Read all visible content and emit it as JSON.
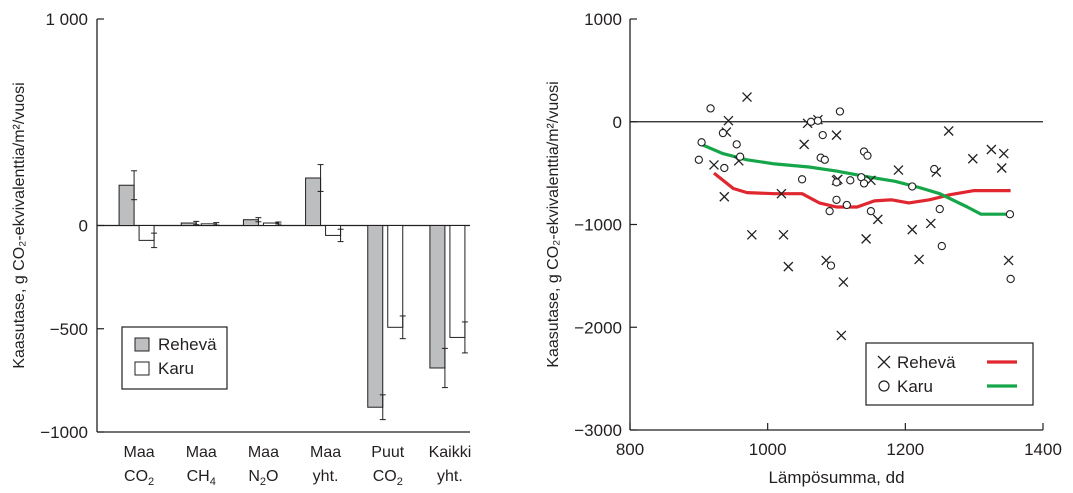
{
  "chart_data": [
    {
      "type": "bar",
      "ylabel": "Kaasutase, g CO₂-ekvivalenttia/m²/vuosi",
      "ylim": [
        -1000,
        1000
      ],
      "yticks": [
        {
          "value": 1000,
          "label": "1 000"
        },
        {
          "value": 0,
          "label": "0"
        },
        {
          "value": -500,
          "label": "−500"
        },
        {
          "value": -1000,
          "label": "−1000"
        }
      ],
      "categories": [
        {
          "line1": "Maa",
          "line2": "CO",
          "sub": "2"
        },
        {
          "line1": "Maa",
          "line2": "CH",
          "sub": "4"
        },
        {
          "line1": "Maa",
          "line2": "N",
          "sub": "2",
          "line2_suffix": "O"
        },
        {
          "line1": "Maa",
          "line2": "yht.",
          "sub": ""
        },
        {
          "line1": "Puut",
          "line2": "CO",
          "sub": "2"
        },
        {
          "line1": "Kaikki",
          "line2": "yht.",
          "sub": ""
        }
      ],
      "series": [
        {
          "name": "Rehevä",
          "color": "#bcbec0",
          "values": [
            195,
            12,
            28,
            230,
            -880,
            -690
          ],
          "errors": [
            70,
            8,
            10,
            65,
            60,
            95
          ]
        },
        {
          "name": "Karu",
          "color": "#ffffff",
          "values": [
            -72,
            8,
            12,
            -48,
            -493,
            -542
          ],
          "errors": [
            35,
            6,
            5,
            30,
            55,
            75
          ]
        }
      ],
      "legend": {
        "position": "bottom-left",
        "items": [
          "Rehevä",
          "Karu"
        ]
      }
    },
    {
      "type": "scatter",
      "ylabel": "Kaasutase, g CO₂-ekvivalenttia/m²/vuosi",
      "xlabel": "Lämpösumma, dd",
      "xlim": [
        800,
        1400
      ],
      "ylim": [
        -3000,
        1000
      ],
      "xticks": [
        800,
        1000,
        1200,
        1400
      ],
      "yticks": [
        {
          "value": 1000,
          "label": "1000"
        },
        {
          "value": 0,
          "label": "0"
        },
        {
          "value": -1000,
          "label": "−1000"
        },
        {
          "value": -2000,
          "label": "−2000"
        },
        {
          "value": -3000,
          "label": "−3000"
        }
      ],
      "series": [
        {
          "name": "Rehevä",
          "marker": "x",
          "line_color": "#e0262f",
          "points": [
            [
              922,
              -420
            ],
            [
              937,
              -730
            ],
            [
              940,
              -100
            ],
            [
              943,
              10
            ],
            [
              958,
              -380
            ],
            [
              970,
              240
            ],
            [
              977,
              -1100
            ],
            [
              1020,
              -700
            ],
            [
              1023,
              -1100
            ],
            [
              1030,
              -1410
            ],
            [
              1053,
              -220
            ],
            [
              1058,
              -15
            ],
            [
              1073,
              20
            ],
            [
              1085,
              -1350
            ],
            [
              1100,
              -570
            ],
            [
              1100,
              -130
            ],
            [
              1102,
              -560
            ],
            [
              1110,
              -1560
            ],
            [
              1107,
              -2080
            ],
            [
              1143,
              -1140
            ],
            [
              1150,
              -570
            ],
            [
              1160,
              -950
            ],
            [
              1190,
              -470
            ],
            [
              1210,
              -1050
            ],
            [
              1220,
              -1340
            ],
            [
              1237,
              -990
            ],
            [
              1245,
              -490
            ],
            [
              1263,
              -90
            ],
            [
              1298,
              -360
            ],
            [
              1325,
              -270
            ],
            [
              1340,
              -450
            ],
            [
              1343,
              -310
            ],
            [
              1350,
              -1350
            ]
          ],
          "trend": [
            [
              922,
              -500
            ],
            [
              950,
              -650
            ],
            [
              970,
              -690
            ],
            [
              1010,
              -700
            ],
            [
              1050,
              -700
            ],
            [
              1075,
              -790
            ],
            [
              1100,
              -830
            ],
            [
              1130,
              -830
            ],
            [
              1155,
              -770
            ],
            [
              1180,
              -760
            ],
            [
              1205,
              -790
            ],
            [
              1235,
              -760
            ],
            [
              1265,
              -710
            ],
            [
              1300,
              -670
            ],
            [
              1353,
              -670
            ]
          ]
        },
        {
          "name": "Karu",
          "marker": "o",
          "line_color": "#16a64a",
          "points": [
            [
              900,
              -370
            ],
            [
              904,
              -200
            ],
            [
              917,
              130
            ],
            [
              935,
              -110
            ],
            [
              937,
              -450
            ],
            [
              955,
              -220
            ],
            [
              960,
              -340
            ],
            [
              1050,
              -560
            ],
            [
              1063,
              0
            ],
            [
              1073,
              10
            ],
            [
              1077,
              -350
            ],
            [
              1080,
              -130
            ],
            [
              1083,
              -370
            ],
            [
              1090,
              -870
            ],
            [
              1092,
              -1400
            ],
            [
              1100,
              -590
            ],
            [
              1100,
              -760
            ],
            [
              1105,
              100
            ],
            [
              1115,
              -810
            ],
            [
              1120,
              -570
            ],
            [
              1136,
              -540
            ],
            [
              1140,
              -600
            ],
            [
              1140,
              -290
            ],
            [
              1145,
              -330
            ],
            [
              1150,
              -870
            ],
            [
              1210,
              -630
            ],
            [
              1242,
              -460
            ],
            [
              1250,
              -850
            ],
            [
              1253,
              -1210
            ],
            [
              1352,
              -900
            ],
            [
              1353,
              -1530
            ]
          ],
          "trend": [
            [
              900,
              -210
            ],
            [
              935,
              -310
            ],
            [
              970,
              -370
            ],
            [
              1010,
              -410
            ],
            [
              1060,
              -440
            ],
            [
              1100,
              -480
            ],
            [
              1140,
              -530
            ],
            [
              1185,
              -580
            ],
            [
              1220,
              -640
            ],
            [
              1250,
              -700
            ],
            [
              1290,
              -830
            ],
            [
              1310,
              -900
            ],
            [
              1353,
              -900
            ]
          ]
        }
      ],
      "legend": {
        "position": "bottom-right",
        "items": [
          "Rehevä",
          "Karu"
        ]
      }
    }
  ]
}
